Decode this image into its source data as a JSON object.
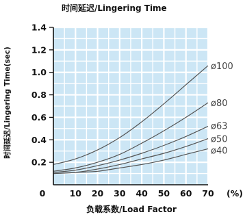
{
  "chart_data": {
    "type": "line",
    "title": "时间延迟/Lingering Time",
    "xlabel": "负载系数/Load Factor",
    "ylabel": "时间延迟/Lingering Time(sec)",
    "x_unit": "(%)",
    "xlim": [
      0,
      70
    ],
    "ylim": [
      0,
      1.4
    ],
    "x_ticks": [
      "0",
      "10",
      "20",
      "30",
      "40",
      "50",
      "60",
      "70"
    ],
    "y_ticks": [
      "0.2",
      "0.4",
      "0.6",
      "0.8",
      "1.0",
      "1.2",
      "1.4"
    ],
    "grid": true,
    "colors": {
      "plot_bg": "#cce6f5",
      "grid": "#ffffff",
      "line": "#555555",
      "axis": "#111111"
    },
    "series": [
      {
        "name": "ø100",
        "x": [
          0,
          10,
          20,
          30,
          40,
          50,
          60,
          70
        ],
        "y": [
          0.18,
          0.23,
          0.31,
          0.42,
          0.56,
          0.72,
          0.89,
          1.06
        ]
      },
      {
        "name": "ø80",
        "x": [
          0,
          10,
          20,
          30,
          40,
          50,
          60,
          70
        ],
        "y": [
          0.12,
          0.15,
          0.2,
          0.27,
          0.37,
          0.48,
          0.6,
          0.73
        ]
      },
      {
        "name": "ø63",
        "x": [
          0,
          10,
          20,
          30,
          40,
          50,
          60,
          70
        ],
        "y": [
          0.11,
          0.13,
          0.17,
          0.22,
          0.28,
          0.35,
          0.43,
          0.52
        ]
      },
      {
        "name": "ø50",
        "x": [
          0,
          10,
          20,
          30,
          40,
          50,
          60,
          70
        ],
        "y": [
          0.1,
          0.11,
          0.14,
          0.18,
          0.23,
          0.28,
          0.34,
          0.41
        ]
      },
      {
        "name": "ø40",
        "x": [
          0,
          10,
          20,
          30,
          40,
          50,
          60,
          70
        ],
        "y": [
          0.1,
          0.11,
          0.12,
          0.15,
          0.18,
          0.22,
          0.27,
          0.32
        ]
      }
    ]
  }
}
